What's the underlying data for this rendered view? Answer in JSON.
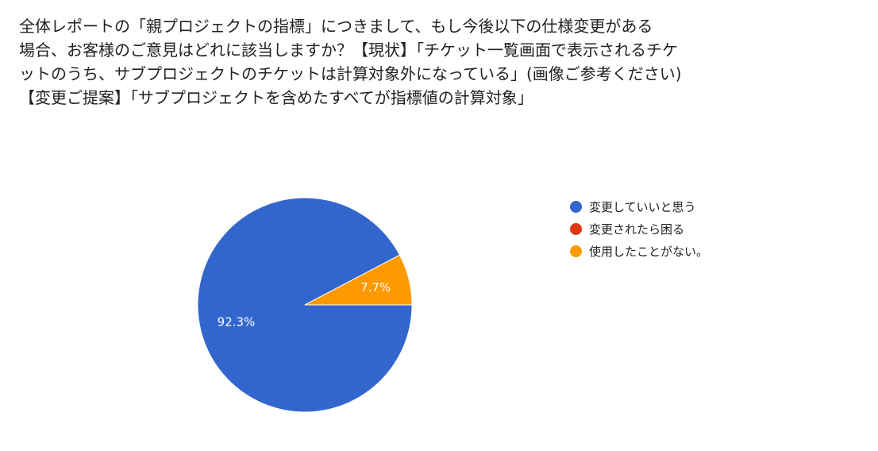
{
  "question": {
    "lines": [
      "全体レポートの「親プロジェクトの指標」につきまして、もし今後以下の仕様変更がある",
      "場合、お客様のご意見はどれに該当しますか？【現状】「チケット一覧画面で表示されるチケ",
      "ットのうち、サブプロジェクトのチケットは計算対象外になっている」(画像ご参考ください)",
      "【変更ご提案】「サブプロジェクトを含めたすべてが指標値の計算対象」"
    ]
  },
  "chart_data": {
    "type": "pie",
    "categories": [
      "変更していいと思う",
      "変更されたら困る",
      "使用したことがない。"
    ],
    "values": [
      92.3,
      0,
      7.7
    ],
    "data_labels": [
      "92.3%",
      "",
      "7.7%"
    ],
    "colors": [
      "#3366cc",
      "#dc3912",
      "#ff9900"
    ],
    "legend_position": "right",
    "title": ""
  }
}
